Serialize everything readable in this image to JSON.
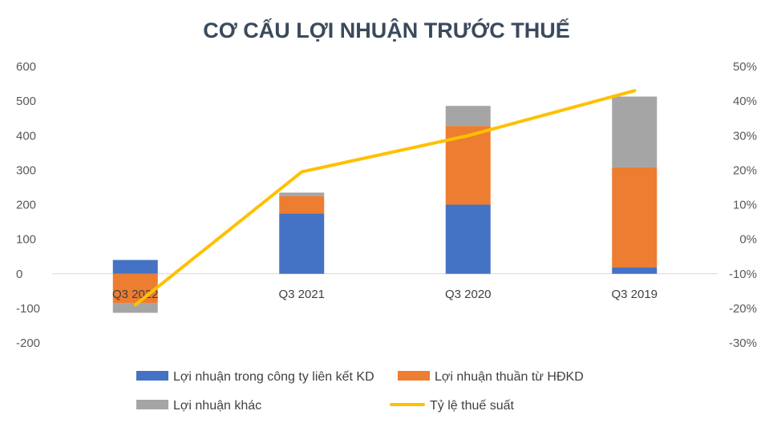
{
  "chart_data": {
    "type": "bar",
    "title": "CƠ CẤU LỢI NHUẬN TRƯỚC THUẾ",
    "categories": [
      "Q3 2022",
      "Q3 2021",
      "Q3 2020",
      "Q3 2019"
    ],
    "stacked": true,
    "series": [
      {
        "name": "Lợi nhuận trong công ty liên kết KD",
        "type": "bar",
        "axis": "left",
        "color": "#4472c4",
        "values": [
          40,
          175,
          200,
          18
        ]
      },
      {
        "name": "Lợi nhuận thuần từ HĐKD",
        "type": "bar",
        "axis": "left",
        "color": "#ed7d31",
        "values": [
          -85,
          50,
          228,
          290
        ]
      },
      {
        "name": "Lợi nhuận khác",
        "type": "bar",
        "axis": "left",
        "color": "#a5a5a5",
        "values": [
          -28,
          10,
          58,
          205
        ]
      },
      {
        "name": "Tỷ lệ thuế suất",
        "type": "line",
        "axis": "right",
        "color": "#ffc000",
        "values": [
          -19,
          19.5,
          30,
          43
        ]
      }
    ],
    "y_left": {
      "min": -200,
      "max": 600,
      "step": 100,
      "tick_labels": [
        "600",
        "500",
        "400",
        "300",
        "200",
        "100",
        "0",
        "-100",
        "-200"
      ]
    },
    "y_right": {
      "min": -30,
      "max": 50,
      "step": 10,
      "unit": "%",
      "tick_labels": [
        "50%",
        "40%",
        "30%",
        "20%",
        "10%",
        "0%",
        "-10%",
        "-20%",
        "-30%"
      ]
    },
    "grid": false,
    "legend_position": "bottom"
  }
}
